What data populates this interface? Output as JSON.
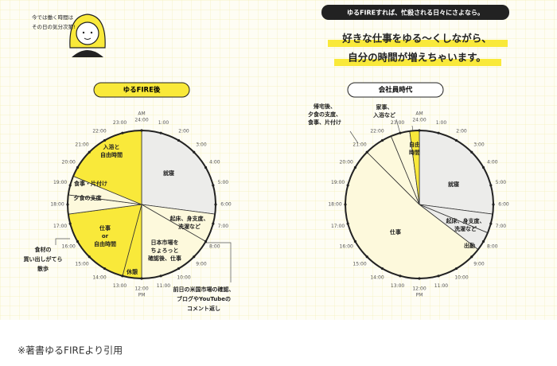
{
  "header": "ゆるFIREすれば、忙殺される日々にさよなら。",
  "headline": [
    "好きな仕事をゆる～くしながら、",
    "自分の時間が増えちゃいます。"
  ],
  "speech": [
    "今では働く時間は",
    "その日の気分次第!"
  ],
  "footnote": "※著書ゆるFIREより引用",
  "chart_data": [
    {
      "type": "pie",
      "title": "ゆるFIRE後",
      "categories": [
        [
          "就寝"
        ],
        [
          "起床、身支度、",
          "洗濯など"
        ],
        [
          "日本市場を",
          "ちょろっと",
          "確認後、仕事"
        ],
        [
          "休憩"
        ],
        [
          "仕事",
          "or",
          "自由時間"
        ],
        [
          "夕食の支度"
        ],
        [
          "食事・片付け"
        ],
        [
          "入浴と",
          "自由時間"
        ]
      ],
      "values": [
        6.5,
        1.5,
        4,
        1,
        4.5,
        1,
        1,
        4.5
      ],
      "colors": [
        "#ececea",
        "#fdf9dc",
        "#fdf9dc",
        "#f9e93a",
        "#f9e93a",
        "#fdf9dc",
        "#fdf9dc",
        "#f9e93a"
      ],
      "annotations": [
        [
          "食材の",
          "買い出しがてら",
          "散歩"
        ],
        [
          "前日の米国市場の確認、",
          "ブログやYouTubeの",
          "コメント返し"
        ]
      ],
      "period_labels": [
        "AM",
        "PM"
      ],
      "xlim": [
        0,
        24
      ],
      "xticks": [
        {
          "value": 1,
          "label": "1:00"
        },
        {
          "value": 2,
          "label": "2:00"
        },
        {
          "value": 3,
          "label": "3:00"
        },
        {
          "value": 4,
          "label": "4:00"
        },
        {
          "value": 5,
          "label": "5:00"
        },
        {
          "value": 6,
          "label": "6:00"
        },
        {
          "value": 7,
          "label": "7:00"
        },
        {
          "value": 8,
          "label": "8:00"
        },
        {
          "value": 9,
          "label": "9:00"
        },
        {
          "value": 10,
          "label": "10:00"
        },
        {
          "value": 11,
          "label": "11:00"
        },
        {
          "value": 12,
          "label": "12:00"
        },
        {
          "value": 13,
          "label": "13:00"
        },
        {
          "value": 14,
          "label": "14:00"
        },
        {
          "value": 15,
          "label": "15:00"
        },
        {
          "value": 16,
          "label": "16:00"
        },
        {
          "value": 17,
          "label": "17:00"
        },
        {
          "value": 18,
          "label": "18:00"
        },
        {
          "value": 19,
          "label": "19:00"
        },
        {
          "value": 20,
          "label": "20:00"
        },
        {
          "value": 21,
          "label": "21:00"
        },
        {
          "value": 22,
          "label": "22:00"
        },
        {
          "value": 23,
          "label": "23:00"
        },
        {
          "value": 24,
          "label": "24:00"
        }
      ]
    },
    {
      "type": "pie",
      "title": "会社員時代",
      "categories": [
        [
          "就寝"
        ],
        [
          "起床、身支度、",
          "洗濯など"
        ],
        [
          "出勤"
        ],
        [
          "仕事"
        ],
        [
          "帰宅後、",
          "夕食の支度、",
          "食事、片付け"
        ],
        [
          "家事、",
          "入浴など"
        ],
        [
          "自由",
          "時間"
        ]
      ],
      "values": [
        6.5,
        1,
        1,
        12.5,
        1.5,
        1,
        0.5
      ],
      "colors": [
        "#ececea",
        "#ececea",
        "#ececea",
        "#fdf9dc",
        "#fdf9dc",
        "#fdf9dc",
        "#f9e93a"
      ],
      "period_labels": [
        "AM",
        "PM"
      ],
      "xlim": [
        0,
        24
      ],
      "xticks": [
        {
          "value": 1,
          "label": "1:00"
        },
        {
          "value": 2,
          "label": "2:00"
        },
        {
          "value": 3,
          "label": "3:00"
        },
        {
          "value": 4,
          "label": "4:00"
        },
        {
          "value": 5,
          "label": "5:00"
        },
        {
          "value": 6,
          "label": "6:00"
        },
        {
          "value": 7,
          "label": "7:00"
        },
        {
          "value": 8,
          "label": "8:00"
        },
        {
          "value": 9,
          "label": "9:00"
        },
        {
          "value": 10,
          "label": "10:00"
        },
        {
          "value": 11,
          "label": "11:00"
        },
        {
          "value": 12,
          "label": "12:00"
        },
        {
          "value": 13,
          "label": "13:00"
        },
        {
          "value": 14,
          "label": "14:00"
        },
        {
          "value": 15,
          "label": "15:00"
        },
        {
          "value": 16,
          "label": "16:00"
        },
        {
          "value": 17,
          "label": "17:00"
        },
        {
          "value": 18,
          "label": "18:00"
        },
        {
          "value": 19,
          "label": "19:00"
        },
        {
          "value": 20,
          "label": "20:00"
        },
        {
          "value": 21,
          "label": "21:00"
        },
        {
          "value": 22,
          "label": "22:00"
        },
        {
          "value": 23,
          "label": "23:00"
        },
        {
          "value": 24,
          "label": "24:00"
        }
      ]
    }
  ]
}
